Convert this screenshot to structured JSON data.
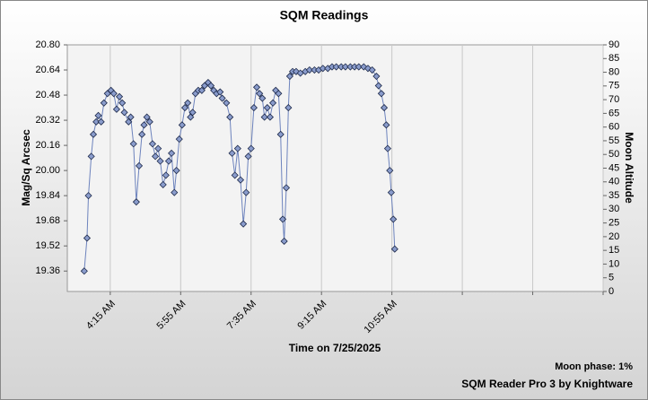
{
  "chart_data": {
    "type": "line",
    "title": "SQM Readings",
    "x_label": "Time on 7/25/2025",
    "y_label": "Mag/Sq Arcsec",
    "y2_label": "Moon Altitude",
    "moon_phase": "Moon phase: 1%",
    "footer": "SQM Reader Pro 3 by Knightware",
    "xlim": [
      194,
      955
    ],
    "xticks": [
      {
        "value": 255,
        "label": "4:15 AM"
      },
      {
        "value": 355,
        "label": "5:55 AM"
      },
      {
        "value": 455,
        "label": "7:35 AM"
      },
      {
        "value": 555,
        "label": "9:15 AM"
      },
      {
        "value": 655,
        "label": "10:55 AM"
      },
      {
        "value": 755,
        "label": null
      },
      {
        "value": 855,
        "label": null
      },
      {
        "value": 955,
        "label": null
      }
    ],
    "ylim": [
      19.23,
      20.8
    ],
    "yticks": [
      {
        "value": 20.8,
        "label": "20.80"
      },
      20.64,
      20.48,
      20.32,
      20.16,
      {
        "value": 20,
        "label": "20.00"
      },
      19.84,
      19.68,
      19.52,
      19.36
    ],
    "y2lim": [
      0,
      90
    ],
    "y2ticks": [
      0,
      5,
      10,
      15,
      20,
      25,
      30,
      35,
      40,
      45,
      50,
      55,
      60,
      65,
      70,
      75,
      80,
      85,
      90
    ],
    "grid": "x",
    "x": [
      218,
      222,
      224,
      228,
      231,
      235,
      238,
      242,
      246,
      251,
      256,
      260,
      264,
      268,
      272,
      275,
      281,
      284,
      288,
      292,
      296,
      300,
      303,
      307,
      311,
      315,
      319,
      323,
      326,
      330,
      334,
      338,
      342,
      346,
      349,
      353,
      357,
      361,
      365,
      369,
      372,
      376,
      380,
      385,
      389,
      394,
      398,
      402,
      406,
      411,
      414,
      420,
      425,
      428,
      432,
      436,
      440,
      444,
      448,
      451,
      455,
      459,
      463,
      467,
      471,
      474,
      478,
      482,
      486,
      490,
      494,
      497,
      500,
      502,
      505,
      508,
      510,
      514,
      519,
      525,
      532,
      538,
      545,
      551,
      557,
      564,
      570,
      576,
      583,
      589,
      596,
      602,
      608,
      615,
      621,
      627,
      633,
      636,
      640,
      644,
      647,
      649,
      652,
      654,
      657,
      659
    ],
    "series": [
      {
        "color": "#6d83bd",
        "marker_color": "#8a9ccc",
        "values": [
          19.36,
          19.57,
          19.84,
          20.09,
          20.23,
          20.31,
          20.35,
          20.31,
          20.43,
          20.49,
          20.51,
          20.49,
          20.39,
          20.47,
          20.43,
          20.37,
          20.31,
          20.34,
          20.17,
          19.8,
          20.03,
          20.23,
          20.29,
          20.34,
          20.31,
          20.17,
          20.09,
          20.14,
          20.06,
          19.91,
          19.97,
          20.06,
          20.11,
          19.86,
          20.0,
          20.2,
          20.29,
          20.4,
          20.43,
          20.34,
          20.37,
          20.49,
          20.51,
          20.51,
          20.54,
          20.56,
          20.54,
          20.51,
          20.49,
          20.5,
          20.46,
          20.43,
          20.34,
          20.11,
          19.97,
          20.14,
          19.94,
          19.66,
          19.86,
          20.09,
          20.14,
          20.4,
          20.53,
          20.49,
          20.46,
          20.34,
          20.4,
          20.34,
          20.43,
          20.51,
          20.49,
          20.23,
          19.69,
          19.55,
          19.89,
          20.4,
          20.6,
          20.63,
          20.63,
          20.62,
          20.63,
          20.64,
          20.64,
          20.64,
          20.65,
          20.65,
          20.66,
          20.66,
          20.66,
          20.66,
          20.66,
          20.66,
          20.66,
          20.66,
          20.65,
          20.64,
          20.6,
          20.54,
          20.49,
          20.4,
          20.29,
          20.14,
          20.0,
          19.86,
          19.69,
          19.5
        ]
      }
    ]
  }
}
